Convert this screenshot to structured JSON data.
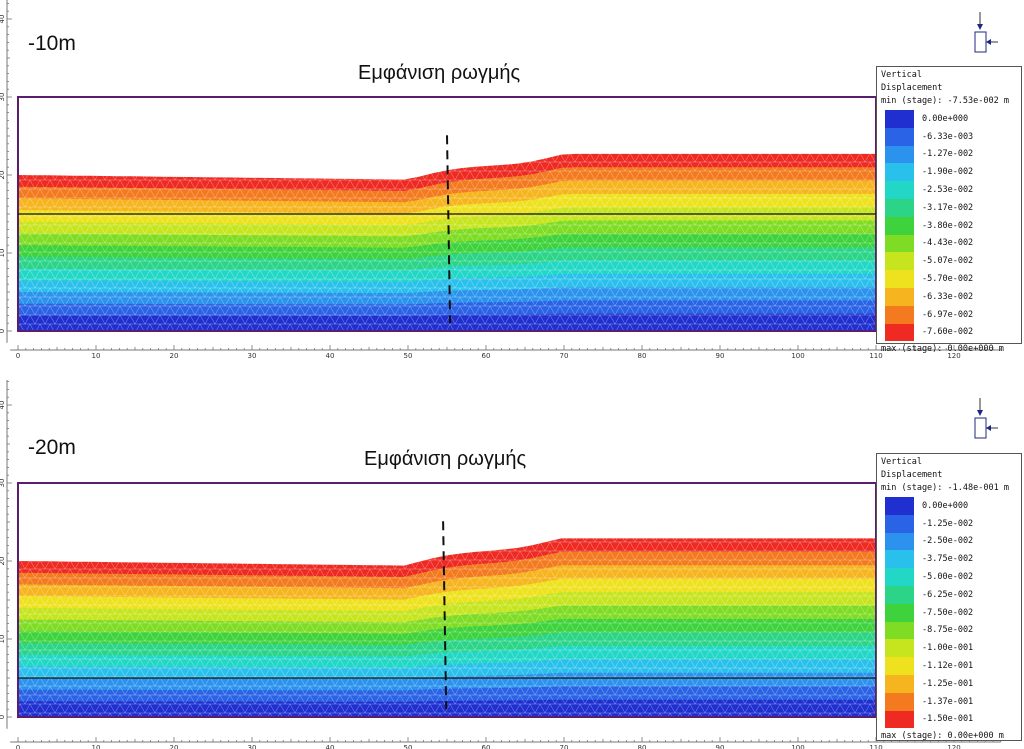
{
  "panels": [
    {
      "depth_label": "-10m",
      "annotation": "Εμφάνιση ρωγμής",
      "legend": {
        "title_line1": "Vertical",
        "title_line2": "Displacement",
        "min_text": "min (stage): -7.53e-002 m",
        "max_text": "max (stage): 0.00e+000 m",
        "values": [
          "0.00e+000",
          "-6.33e-003",
          "-1.27e-002",
          "-1.90e-002",
          "-2.53e-002",
          "-3.17e-002",
          "-3.80e-002",
          "-4.43e-002",
          "-5.07e-002",
          "-5.70e-002",
          "-6.33e-002",
          "-6.97e-002",
          "-7.60e-002"
        ]
      },
      "horizontal_line_y": 15
    },
    {
      "depth_label": "-20m",
      "annotation": "Εμφάνιση ρωγμής",
      "legend": {
        "title_line1": "Vertical",
        "title_line2": "Displacement",
        "min_text": "min (stage): -1.48e-001 m",
        "max_text": "max (stage): 0.00e+000 m",
        "values": [
          "0.00e+000",
          "-1.25e-002",
          "-2.50e-002",
          "-3.75e-002",
          "-5.00e-002",
          "-6.25e-002",
          "-7.50e-002",
          "-8.75e-002",
          "-1.00e-001",
          "-1.12e-001",
          "-1.25e-001",
          "-1.37e-001",
          "-1.50e-001"
        ]
      },
      "horizontal_line_y": 5
    }
  ],
  "axis": {
    "x_ticks": [
      "0",
      "10",
      "20",
      "30",
      "40",
      "50",
      "60",
      "70",
      "80",
      "90",
      "100",
      "110",
      "120"
    ],
    "y_ticks": [
      "0",
      "10",
      "20",
      "30",
      "40"
    ]
  },
  "colors": {
    "scale": [
      "#1f2fd0",
      "#2a63e6",
      "#2b93ee",
      "#2ac0ec",
      "#22d7c6",
      "#2bd487",
      "#3ed23c",
      "#7fdc24",
      "#c6e51e",
      "#eee21e",
      "#f6b41e",
      "#f37a1e",
      "#ee2a22"
    ],
    "frame": "#5b1e6e",
    "mesh": "#ffffff"
  }
}
